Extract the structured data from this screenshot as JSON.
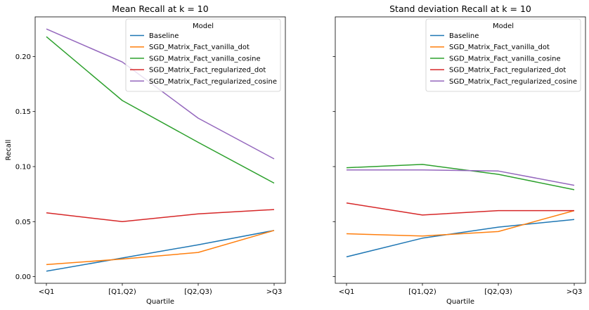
{
  "chart_data": [
    {
      "type": "line",
      "title": "Mean Recall at k = 10",
      "xlabel": "Quartile",
      "ylabel": "Recall",
      "categories": [
        "<Q1",
        "[Q1,Q2)",
        "[Q2,Q3)",
        ">Q3"
      ],
      "ylim": [
        -0.006,
        0.236
      ],
      "yticks": [
        0.0,
        0.05,
        0.1,
        0.15,
        0.2
      ],
      "ytick_labels": [
        "0.00",
        "0.05",
        "0.10",
        "0.15",
        "0.20"
      ],
      "grid": false,
      "legend": {
        "title": "Model",
        "placement": "upper-right"
      },
      "series": [
        {
          "name": "Baseline",
          "color": "#1f77b4",
          "values": [
            0.005,
            0.017,
            0.029,
            0.042
          ]
        },
        {
          "name": "SGD_Matrix_Fact_vanilla_dot",
          "color": "#ff7f0e",
          "values": [
            0.011,
            0.016,
            0.022,
            0.042
          ]
        },
        {
          "name": "SGD_Matrix_Fact_vanilla_cosine",
          "color": "#2ca02c",
          "values": [
            0.218,
            0.16,
            0.122,
            0.085
          ]
        },
        {
          "name": "SGD_Matrix_Fact_regularized_dot",
          "color": "#d62728",
          "values": [
            0.058,
            0.05,
            0.057,
            0.061
          ]
        },
        {
          "name": "SGD_Matrix_Fact_regularized_cosine",
          "color": "#9467bd",
          "values": [
            0.225,
            0.195,
            0.144,
            0.107
          ]
        }
      ]
    },
    {
      "type": "line",
      "title": "Stand deviation Recall at k = 10",
      "xlabel": "Quartile",
      "ylabel": "",
      "categories": [
        "<Q1",
        "[Q1,Q2)",
        "[Q2,Q3)",
        ">Q3"
      ],
      "ylim": [
        -0.006,
        0.236
      ],
      "shared_y": true,
      "grid": false,
      "legend": {
        "title": "Model",
        "placement": "upper-right"
      },
      "series": [
        {
          "name": "Baseline",
          "color": "#1f77b4",
          "values": [
            0.018,
            0.035,
            0.045,
            0.052
          ]
        },
        {
          "name": "SGD_Matrix_Fact_vanilla_dot",
          "color": "#ff7f0e",
          "values": [
            0.039,
            0.037,
            0.041,
            0.06
          ]
        },
        {
          "name": "SGD_Matrix_Fact_vanilla_cosine",
          "color": "#2ca02c",
          "values": [
            0.099,
            0.102,
            0.093,
            0.079
          ]
        },
        {
          "name": "SGD_Matrix_Fact_regularized_dot",
          "color": "#d62728",
          "values": [
            0.067,
            0.056,
            0.06,
            0.06
          ]
        },
        {
          "name": "SGD_Matrix_Fact_regularized_cosine",
          "color": "#9467bd",
          "values": [
            0.097,
            0.097,
            0.096,
            0.083
          ]
        }
      ]
    }
  ]
}
